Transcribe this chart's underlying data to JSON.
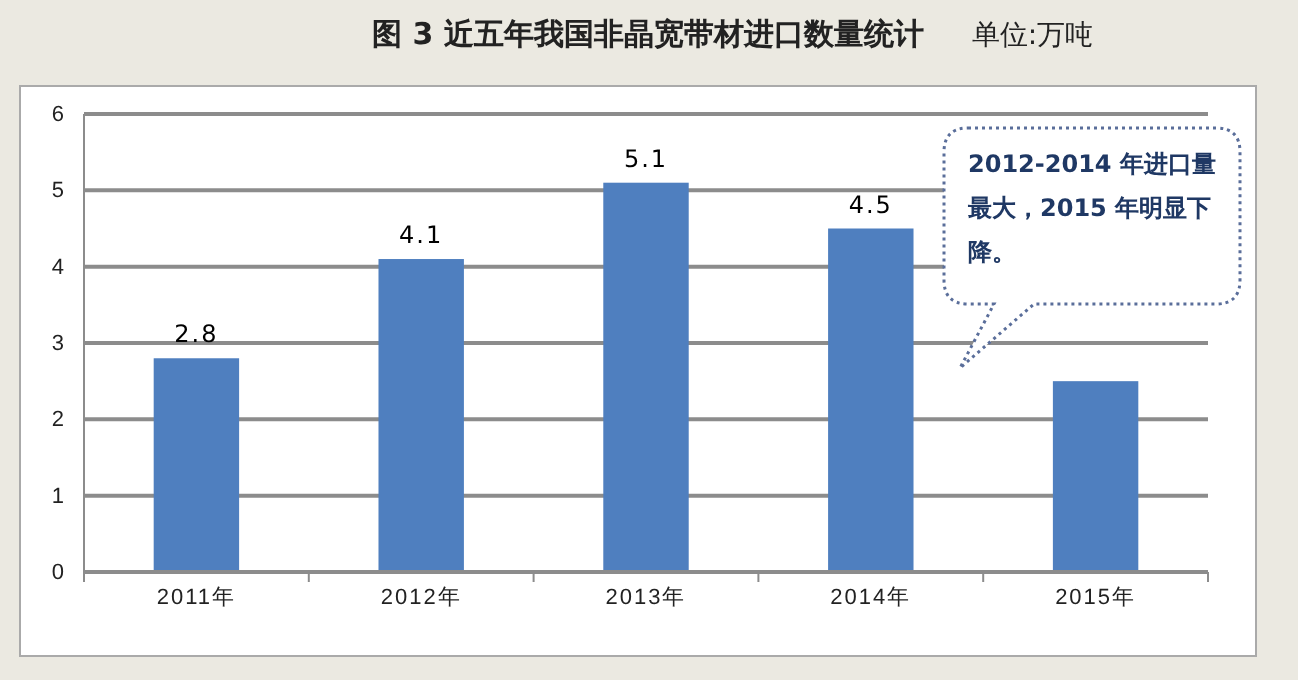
{
  "chart_data": {
    "type": "bar",
    "title": "图 3 近五年我国非晶宽带材进口数量统计",
    "subtitle": "单位:万吨",
    "categories": [
      "2011年",
      "2012年",
      "2013年",
      "2014年",
      "2015年"
    ],
    "values": [
      2.8,
      4.1,
      5.1,
      4.5,
      2.5
    ],
    "value_labels": [
      "2.8",
      "4.1",
      "5.1",
      "4.5",
      null
    ],
    "color": "#4f7fbf",
    "ylim": [
      0,
      6
    ],
    "yticks": [
      0,
      1,
      2,
      3,
      4,
      5,
      6
    ],
    "grid": "y",
    "annotations": [
      "2012-2014 年进口量最大，2015 年明显下降。"
    ]
  }
}
